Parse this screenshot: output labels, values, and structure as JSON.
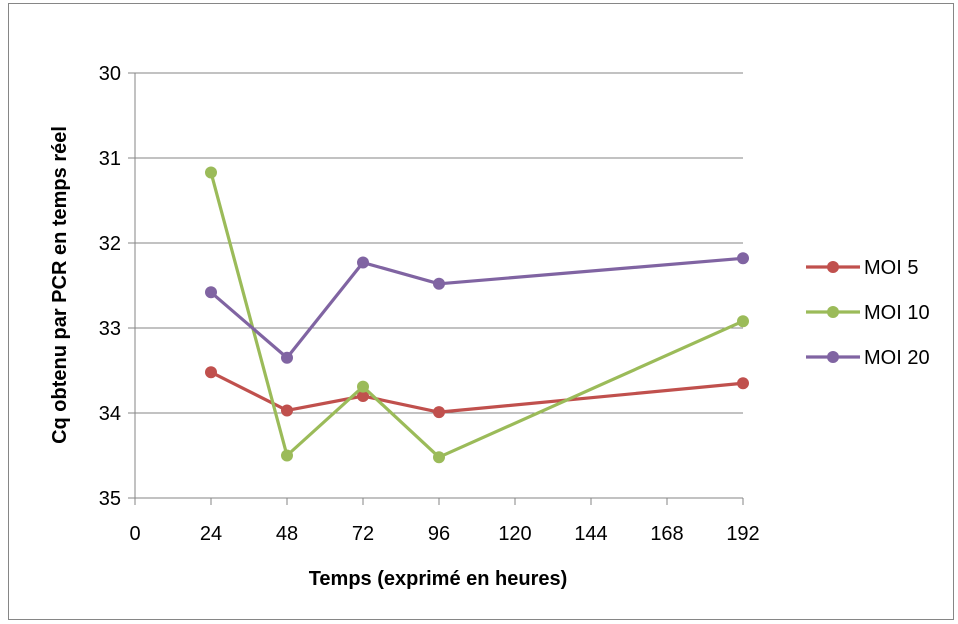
{
  "chart_data": {
    "type": "line",
    "xlabel": "Temps (exprimé en heures)",
    "ylabel": "Cq obtenu par PCR en temps réel",
    "x_ticks": [
      "0",
      "24",
      "48",
      "72",
      "96",
      "120",
      "144",
      "168",
      "192"
    ],
    "y_ticks": [
      "30",
      "31",
      "32",
      "33",
      "34",
      "35"
    ],
    "xlim": [
      0,
      192
    ],
    "ylim": [
      30,
      35
    ],
    "y_reversed": true,
    "grid": "horizontal",
    "legend_position": "right",
    "x": [
      24,
      48,
      72,
      96,
      192
    ],
    "series": [
      {
        "name": "MOI 5",
        "color": "#c0504d",
        "values": [
          33.52,
          33.97,
          33.8,
          33.99,
          33.65
        ]
      },
      {
        "name": "MOI 10",
        "color": "#9bbb59",
        "values": [
          31.17,
          34.5,
          33.69,
          34.52,
          32.92
        ]
      },
      {
        "name": "MOI 20",
        "color": "#8064a2",
        "values": [
          32.58,
          33.35,
          32.23,
          32.48,
          32.18
        ]
      }
    ]
  }
}
